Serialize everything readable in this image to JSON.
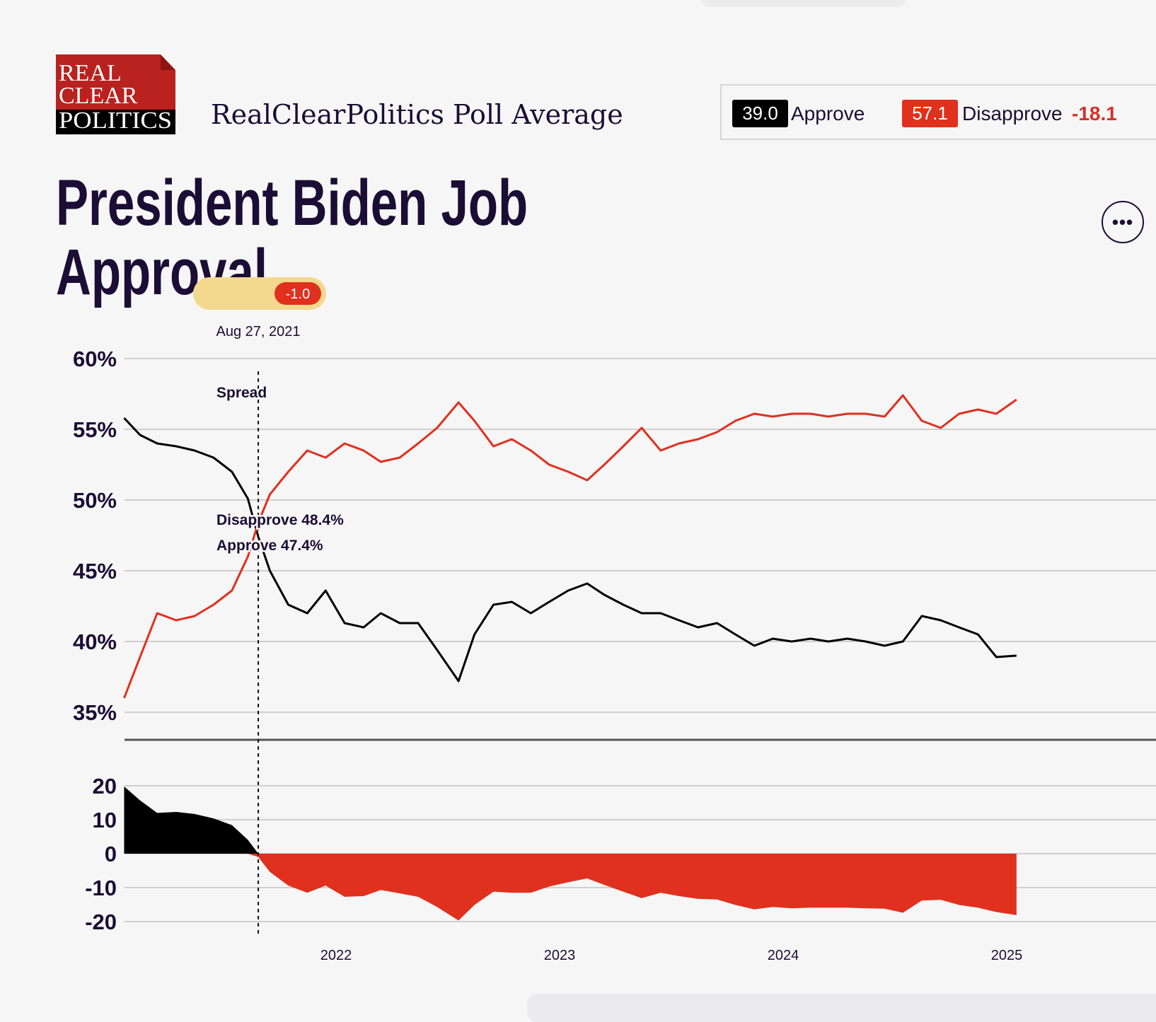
{
  "header": {
    "logo_text": [
      "REAL",
      "CLEAR",
      "POLITICS"
    ],
    "subtitle": "RealClearPolitics Poll Average"
  },
  "summary": {
    "approve_value": "39.0",
    "approve_label": "Approve",
    "disapprove_value": "57.1",
    "disapprove_label": "Disapprove",
    "spread": "-18.1"
  },
  "title": "President Biden Job Approval",
  "more_button_icon": "ellipsis-icon",
  "colors": {
    "approve": "#000000",
    "disapprove": "#e0301e",
    "text": "#1b0d35",
    "tooltip": "#f3d88e"
  },
  "tooltip": {
    "spread_badge": "-1.0",
    "date": "Aug 27, 2021",
    "spread_label": "Spread",
    "disapprove_label": "Disapprove 48.4%",
    "approve_label": "Approve 47.4%"
  },
  "chart_data": [
    {
      "type": "line",
      "title": "",
      "ylim": [
        35,
        60
      ],
      "y_ticks": [
        "60%",
        "55%",
        "50%",
        "45%",
        "40%",
        "35%"
      ],
      "x_ticks": [
        "2022",
        "2023",
        "2024",
        "2025"
      ],
      "grid": true,
      "highlight_date": "2021-08-27",
      "x": [
        "2021-01-20",
        "2021-02-15",
        "2021-03-15",
        "2021-04-15",
        "2021-05-15",
        "2021-06-15",
        "2021-07-15",
        "2021-08-10",
        "2021-08-27",
        "2021-09-15",
        "2021-10-15",
        "2021-11-15",
        "2021-12-15",
        "2022-01-15",
        "2022-02-15",
        "2022-03-15",
        "2022-04-15",
        "2022-05-15",
        "2022-06-15",
        "2022-07-20",
        "2022-08-15",
        "2022-09-15",
        "2022-10-15",
        "2022-11-15",
        "2022-12-15",
        "2023-01-15",
        "2023-02-15",
        "2023-03-15",
        "2023-04-15",
        "2023-05-15",
        "2023-06-15",
        "2023-07-15",
        "2023-08-15",
        "2023-09-15",
        "2023-10-15",
        "2023-11-15",
        "2023-12-15",
        "2024-01-15",
        "2024-02-15",
        "2024-03-15",
        "2024-04-15",
        "2024-05-15",
        "2024-06-15",
        "2024-07-15",
        "2024-08-15",
        "2024-09-15",
        "2024-10-15",
        "2024-11-15",
        "2024-12-15",
        "2025-01-17"
      ],
      "series": [
        {
          "name": "Approve",
          "values": [
            55.8,
            54.6,
            54.0,
            53.8,
            53.5,
            53.0,
            52.0,
            50.1,
            47.4,
            45.0,
            42.6,
            42.0,
            43.6,
            41.3,
            41.0,
            42.0,
            41.3,
            41.3,
            39.4,
            37.2,
            40.5,
            42.6,
            42.8,
            42.0,
            42.8,
            43.6,
            44.1,
            43.3,
            42.6,
            42.0,
            42.0,
            41.5,
            41.0,
            41.3,
            40.5,
            39.7,
            40.2,
            40.0,
            40.2,
            40.0,
            40.2,
            40.0,
            39.7,
            40.0,
            41.8,
            41.5,
            41.0,
            40.5,
            38.9,
            39.0
          ]
        },
        {
          "name": "Disapprove",
          "values": [
            36.0,
            38.9,
            42.0,
            41.5,
            41.8,
            42.6,
            43.6,
            46.0,
            48.4,
            50.4,
            52.0,
            53.5,
            53.0,
            54.0,
            53.5,
            52.7,
            53.0,
            54.0,
            55.1,
            56.9,
            55.6,
            53.8,
            54.3,
            53.5,
            52.5,
            52.0,
            51.4,
            52.5,
            53.8,
            55.1,
            53.5,
            54.0,
            54.3,
            54.8,
            55.6,
            56.1,
            55.9,
            56.1,
            56.1,
            55.9,
            56.1,
            56.1,
            55.9,
            57.4,
            55.6,
            55.1,
            56.1,
            56.4,
            56.1,
            57.1
          ]
        }
      ]
    },
    {
      "type": "area",
      "title": "",
      "series_label": "Spread",
      "ylim": [
        -21,
        21
      ],
      "y_ticks": [
        "20",
        "10",
        "0",
        "-10",
        "-20"
      ],
      "derived_from": "Approve minus Disapprove"
    }
  ]
}
